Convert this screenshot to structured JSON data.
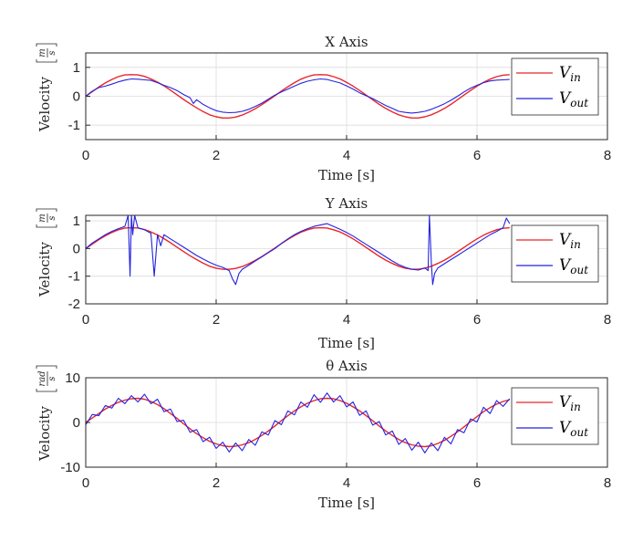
{
  "colors": {
    "v_in": "#e8262a",
    "v_out": "#2323e0",
    "grid": "#dcdcdc",
    "axis": "#262626"
  },
  "chart_data": [
    {
      "type": "line",
      "title": "X Axis",
      "xlabel": "Time [s]",
      "ylabel": "Velocity",
      "ylabel_unit": {
        "num": "m",
        "den": "s"
      },
      "xlim": [
        0,
        8
      ],
      "ylim": [
        -1.5,
        1.5
      ],
      "xticks": [
        0,
        2,
        4,
        6,
        8
      ],
      "yticks": [
        -1,
        0,
        1
      ],
      "grid": true,
      "legend_position": "top-right",
      "legend": [
        {
          "main": "V",
          "sub": "in"
        },
        {
          "main": "V",
          "sub": "out"
        }
      ],
      "series": [
        {
          "name": "V_in",
          "x": [
            0,
            0.1,
            0.2,
            0.3,
            0.4,
            0.5,
            0.6,
            0.7,
            0.8,
            0.9,
            1.0,
            1.1,
            1.2,
            1.3,
            1.4,
            1.5,
            1.6,
            1.7,
            1.8,
            1.9,
            2.0,
            2.1,
            2.2,
            2.3,
            2.4,
            2.5,
            2.6,
            2.7,
            2.8,
            2.9,
            3.0,
            3.1,
            3.2,
            3.3,
            3.4,
            3.5,
            3.6,
            3.7,
            3.8,
            3.9,
            4.0,
            4.1,
            4.2,
            4.3,
            4.4,
            4.5,
            4.6,
            4.7,
            4.8,
            4.9,
            5.0,
            5.1,
            5.2,
            5.3,
            5.4,
            5.5,
            5.6,
            5.7,
            5.8,
            5.9,
            6.0,
            6.1,
            6.2,
            6.3,
            6.4,
            6.5
          ],
          "y": [
            0.0,
            0.16,
            0.32,
            0.46,
            0.58,
            0.68,
            0.74,
            0.75,
            0.74,
            0.69,
            0.6,
            0.49,
            0.36,
            0.21,
            0.05,
            -0.11,
            -0.26,
            -0.4,
            -0.53,
            -0.64,
            -0.71,
            -0.75,
            -0.75,
            -0.72,
            -0.65,
            -0.55,
            -0.43,
            -0.29,
            -0.14,
            0.02,
            0.18,
            0.33,
            0.47,
            0.59,
            0.68,
            0.74,
            0.75,
            0.74,
            0.68,
            0.6,
            0.48,
            0.35,
            0.2,
            0.04,
            -0.12,
            -0.28,
            -0.42,
            -0.54,
            -0.64,
            -0.71,
            -0.75,
            -0.75,
            -0.71,
            -0.64,
            -0.54,
            -0.42,
            -0.28,
            -0.12,
            0.04,
            0.2,
            0.35,
            0.48,
            0.59,
            0.68,
            0.73,
            0.75
          ]
        },
        {
          "name": "V_out",
          "x": [
            0,
            0.1,
            0.2,
            0.3,
            0.4,
            0.5,
            0.6,
            0.7,
            0.8,
            0.9,
            1.0,
            1.1,
            1.2,
            1.3,
            1.4,
            1.5,
            1.6,
            1.65,
            1.7,
            1.8,
            1.9,
            2.0,
            2.1,
            2.2,
            2.3,
            2.4,
            2.5,
            2.6,
            2.7,
            2.8,
            2.9,
            3.0,
            3.1,
            3.2,
            3.3,
            3.4,
            3.5,
            3.6,
            3.7,
            3.8,
            3.9,
            4.0,
            4.1,
            4.2,
            4.3,
            4.4,
            4.5,
            4.6,
            4.7,
            4.8,
            4.9,
            5.0,
            5.1,
            5.2,
            5.3,
            5.4,
            5.5,
            5.6,
            5.7,
            5.8,
            5.9,
            6.0,
            6.1,
            6.2,
            6.3,
            6.4,
            6.5
          ],
          "y": [
            0.0,
            0.18,
            0.3,
            0.35,
            0.42,
            0.5,
            0.56,
            0.6,
            0.59,
            0.57,
            0.55,
            0.47,
            0.38,
            0.3,
            0.2,
            0.06,
            -0.05,
            -0.25,
            -0.12,
            -0.28,
            -0.4,
            -0.5,
            -0.55,
            -0.57,
            -0.56,
            -0.52,
            -0.45,
            -0.35,
            -0.24,
            -0.1,
            0.04,
            0.15,
            0.25,
            0.35,
            0.45,
            0.52,
            0.57,
            0.6,
            0.58,
            0.52,
            0.46,
            0.36,
            0.25,
            0.12,
            0.02,
            -0.08,
            -0.2,
            -0.32,
            -0.42,
            -0.52,
            -0.56,
            -0.58,
            -0.56,
            -0.52,
            -0.45,
            -0.36,
            -0.26,
            -0.14,
            0.0,
            0.15,
            0.28,
            0.38,
            0.47,
            0.53,
            0.56,
            0.57,
            0.58
          ]
        }
      ]
    },
    {
      "type": "line",
      "title": "Y Axis",
      "xlabel": "Time [s]",
      "ylabel": "Velocity",
      "ylabel_unit": {
        "num": "m",
        "den": "s"
      },
      "xlim": [
        0,
        8
      ],
      "ylim": [
        -2,
        1.2
      ],
      "xticks": [
        0,
        2,
        4,
        6,
        8
      ],
      "yticks": [
        -2,
        -1,
        0,
        1
      ],
      "grid": true,
      "legend_position": "right",
      "legend": [
        {
          "main": "V",
          "sub": "in"
        },
        {
          "main": "V",
          "sub": "out"
        }
      ],
      "series": [
        {
          "name": "V_in",
          "x": [
            0,
            0.1,
            0.2,
            0.3,
            0.4,
            0.5,
            0.6,
            0.7,
            0.8,
            0.9,
            1.0,
            1.1,
            1.2,
            1.3,
            1.4,
            1.5,
            1.6,
            1.7,
            1.8,
            1.9,
            2.0,
            2.1,
            2.2,
            2.3,
            2.4,
            2.5,
            2.6,
            2.7,
            2.8,
            2.9,
            3.0,
            3.1,
            3.2,
            3.3,
            3.4,
            3.5,
            3.6,
            3.7,
            3.8,
            3.9,
            4.0,
            4.1,
            4.2,
            4.3,
            4.4,
            4.5,
            4.6,
            4.7,
            4.8,
            4.9,
            5.0,
            5.1,
            5.2,
            5.3,
            5.4,
            5.5,
            5.6,
            5.7,
            5.8,
            5.9,
            6.0,
            6.1,
            6.2,
            6.3,
            6.4,
            6.5
          ],
          "y": [
            0.0,
            0.16,
            0.32,
            0.46,
            0.58,
            0.68,
            0.74,
            0.75,
            0.74,
            0.69,
            0.6,
            0.49,
            0.36,
            0.21,
            0.05,
            -0.11,
            -0.26,
            -0.4,
            -0.53,
            -0.64,
            -0.71,
            -0.75,
            -0.75,
            -0.72,
            -0.65,
            -0.55,
            -0.43,
            -0.29,
            -0.14,
            0.02,
            0.18,
            0.33,
            0.47,
            0.59,
            0.68,
            0.74,
            0.75,
            0.74,
            0.68,
            0.6,
            0.48,
            0.35,
            0.2,
            0.04,
            -0.12,
            -0.28,
            -0.42,
            -0.54,
            -0.64,
            -0.71,
            -0.75,
            -0.75,
            -0.71,
            -0.64,
            -0.54,
            -0.42,
            -0.28,
            -0.12,
            0.04,
            0.2,
            0.35,
            0.48,
            0.59,
            0.68,
            0.73,
            0.75
          ]
        },
        {
          "name": "V_out",
          "x": [
            0,
            0.1,
            0.2,
            0.3,
            0.4,
            0.5,
            0.6,
            0.65,
            0.68,
            0.7,
            0.72,
            0.75,
            0.8,
            0.9,
            1.0,
            1.05,
            1.1,
            1.15,
            1.2,
            1.3,
            1.4,
            1.5,
            1.6,
            1.7,
            1.8,
            1.9,
            2.0,
            2.1,
            2.2,
            2.25,
            2.3,
            2.35,
            2.4,
            2.5,
            2.6,
            2.7,
            2.8,
            2.9,
            3.0,
            3.1,
            3.2,
            3.3,
            3.4,
            3.5,
            3.6,
            3.7,
            3.8,
            3.9,
            4.0,
            4.1,
            4.2,
            4.3,
            4.4,
            4.5,
            4.6,
            4.7,
            4.8,
            4.9,
            5.0,
            5.1,
            5.2,
            5.25,
            5.27,
            5.3,
            5.32,
            5.35,
            5.4,
            5.5,
            5.6,
            5.7,
            5.8,
            5.9,
            6.0,
            6.1,
            6.2,
            6.3,
            6.4,
            6.45,
            6.5
          ],
          "y": [
            0.0,
            0.2,
            0.35,
            0.5,
            0.62,
            0.72,
            0.8,
            1.2,
            -1.0,
            1.2,
            0.5,
            1.2,
            0.75,
            0.68,
            0.55,
            -1.0,
            0.5,
            0.1,
            0.5,
            0.35,
            0.2,
            0.05,
            -0.1,
            -0.25,
            -0.38,
            -0.5,
            -0.6,
            -0.68,
            -0.8,
            -1.1,
            -1.3,
            -0.9,
            -0.75,
            -0.6,
            -0.45,
            -0.3,
            -0.15,
            0.0,
            0.18,
            0.35,
            0.5,
            0.62,
            0.72,
            0.8,
            0.85,
            0.9,
            0.8,
            0.7,
            0.58,
            0.45,
            0.3,
            0.15,
            0.0,
            -0.15,
            -0.3,
            -0.45,
            -0.58,
            -0.68,
            -0.75,
            -0.78,
            -0.7,
            -0.8,
            1.2,
            -0.5,
            -1.3,
            -0.9,
            -0.7,
            -0.55,
            -0.4,
            -0.25,
            -0.1,
            0.05,
            0.2,
            0.35,
            0.5,
            0.62,
            0.75,
            1.1,
            0.9
          ]
        }
      ]
    },
    {
      "type": "line",
      "title": "θ Axis",
      "xlabel": "Time [s]",
      "ylabel": "Velocity",
      "ylabel_unit": {
        "num": "rad",
        "den": "s"
      },
      "xlim": [
        0,
        8
      ],
      "ylim": [
        -10,
        10
      ],
      "xticks": [
        0,
        2,
        4,
        6,
        8
      ],
      "yticks": [
        -10,
        0,
        10
      ],
      "grid": true,
      "legend_position": "right",
      "legend": [
        {
          "main": "V",
          "sub": "in"
        },
        {
          "main": "V",
          "sub": "out"
        }
      ],
      "series": [
        {
          "name": "V_in",
          "x": [
            0,
            0.1,
            0.2,
            0.3,
            0.4,
            0.5,
            0.6,
            0.7,
            0.8,
            0.9,
            1.0,
            1.1,
            1.2,
            1.3,
            1.4,
            1.5,
            1.6,
            1.7,
            1.8,
            1.9,
            2.0,
            2.1,
            2.2,
            2.3,
            2.4,
            2.5,
            2.6,
            2.7,
            2.8,
            2.9,
            3.0,
            3.1,
            3.2,
            3.3,
            3.4,
            3.5,
            3.6,
            3.7,
            3.8,
            3.9,
            4.0,
            4.1,
            4.2,
            4.3,
            4.4,
            4.5,
            4.6,
            4.7,
            4.8,
            4.9,
            5.0,
            5.1,
            5.2,
            5.3,
            5.4,
            5.5,
            5.6,
            5.7,
            5.8,
            5.9,
            6.0,
            6.1,
            6.2,
            6.3,
            6.4,
            6.5
          ],
          "y": [
            0.0,
            1.0,
            2.0,
            3.0,
            3.8,
            4.5,
            5.0,
            5.3,
            5.4,
            5.2,
            4.7,
            4.0,
            3.1,
            2.0,
            0.9,
            -0.3,
            -1.4,
            -2.5,
            -3.4,
            -4.2,
            -4.8,
            -5.2,
            -5.4,
            -5.3,
            -5.0,
            -4.5,
            -3.8,
            -2.9,
            -1.9,
            -0.8,
            0.4,
            1.5,
            2.6,
            3.5,
            4.3,
            4.9,
            5.3,
            5.4,
            5.3,
            4.9,
            4.3,
            3.5,
            2.6,
            1.5,
            0.4,
            -0.8,
            -1.9,
            -2.9,
            -3.8,
            -4.5,
            -5.0,
            -5.3,
            -5.4,
            -5.2,
            -4.7,
            -4.0,
            -3.1,
            -2.1,
            -1.0,
            0.2,
            1.3,
            2.4,
            3.3,
            4.1,
            4.7,
            5.1
          ]
        },
        {
          "name": "V_out",
          "x": [
            0,
            0.1,
            0.2,
            0.3,
            0.4,
            0.5,
            0.6,
            0.7,
            0.8,
            0.9,
            1.0,
            1.1,
            1.2,
            1.3,
            1.4,
            1.5,
            1.6,
            1.7,
            1.8,
            1.9,
            2.0,
            2.1,
            2.2,
            2.3,
            2.4,
            2.5,
            2.6,
            2.7,
            2.8,
            2.9,
            3.0,
            3.1,
            3.2,
            3.3,
            3.4,
            3.5,
            3.6,
            3.7,
            3.8,
            3.9,
            4.0,
            4.1,
            4.2,
            4.3,
            4.4,
            4.5,
            4.6,
            4.7,
            4.8,
            4.9,
            5.0,
            5.1,
            5.2,
            5.3,
            5.4,
            5.5,
            5.6,
            5.7,
            5.8,
            5.9,
            6.0,
            6.1,
            6.2,
            6.3,
            6.4,
            6.5
          ],
          "y": [
            -0.5,
            1.8,
            1.5,
            3.8,
            3.2,
            5.4,
            4.2,
            6.0,
            4.6,
            6.3,
            4.2,
            5.2,
            2.4,
            3.0,
            0.2,
            0.5,
            -2.2,
            -1.6,
            -4.3,
            -3.3,
            -5.8,
            -4.4,
            -6.6,
            -4.6,
            -6.3,
            -3.8,
            -5.1,
            -2.1,
            -2.8,
            0.4,
            -0.5,
            2.6,
            1.7,
            4.6,
            3.4,
            6.2,
            4.5,
            6.6,
            4.6,
            6.0,
            3.5,
            4.6,
            1.6,
            2.6,
            -0.6,
            0.2,
            -2.8,
            -1.9,
            -4.9,
            -3.6,
            -6.2,
            -4.4,
            -6.8,
            -4.6,
            -6.3,
            -3.3,
            -4.8,
            -1.6,
            -2.3,
            0.8,
            0.1,
            3.4,
            2.0,
            4.9,
            3.6,
            5.3
          ]
        }
      ]
    }
  ]
}
